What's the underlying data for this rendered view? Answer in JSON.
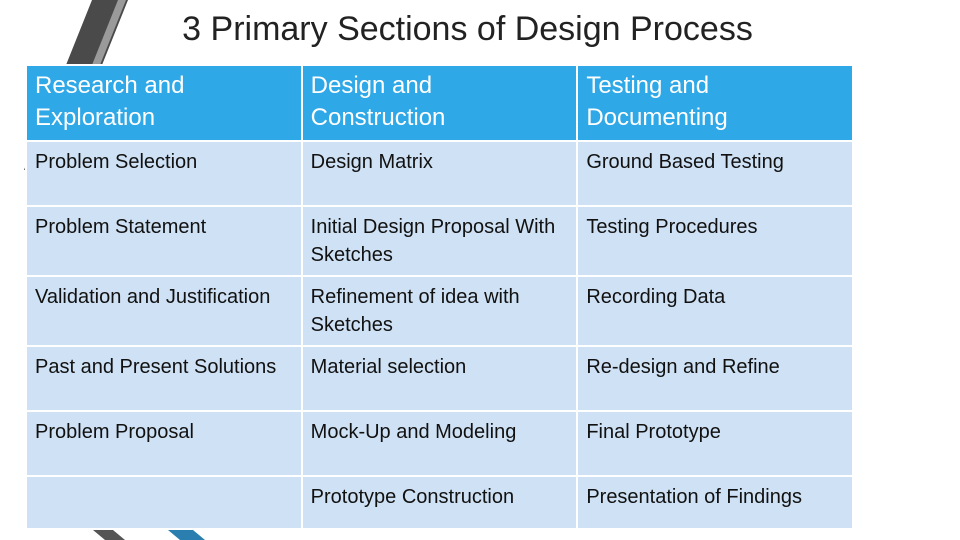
{
  "header": {
    "title": "3 Primary Sections of Design Process"
  },
  "table": {
    "columns": [
      "Research and Exploration",
      "Design and Construction",
      "Testing and Documenting"
    ],
    "rows": [
      [
        "Problem Selection",
        "Design Matrix",
        "Ground Based Testing"
      ],
      [
        "Problem Statement",
        "Initial Design Proposal With Sketches",
        "Testing Procedures"
      ],
      [
        "Validation and Justification",
        "Refinement of idea with Sketches",
        "Recording Data"
      ],
      [
        "Past and Present Solutions",
        "Material selection",
        "Re-design and Refine"
      ],
      [
        "Problem Proposal",
        "Mock-Up and Modeling",
        "Final Prototype"
      ],
      [
        null,
        "Prototype Construction",
        "Presentation of Findings"
      ]
    ]
  }
}
